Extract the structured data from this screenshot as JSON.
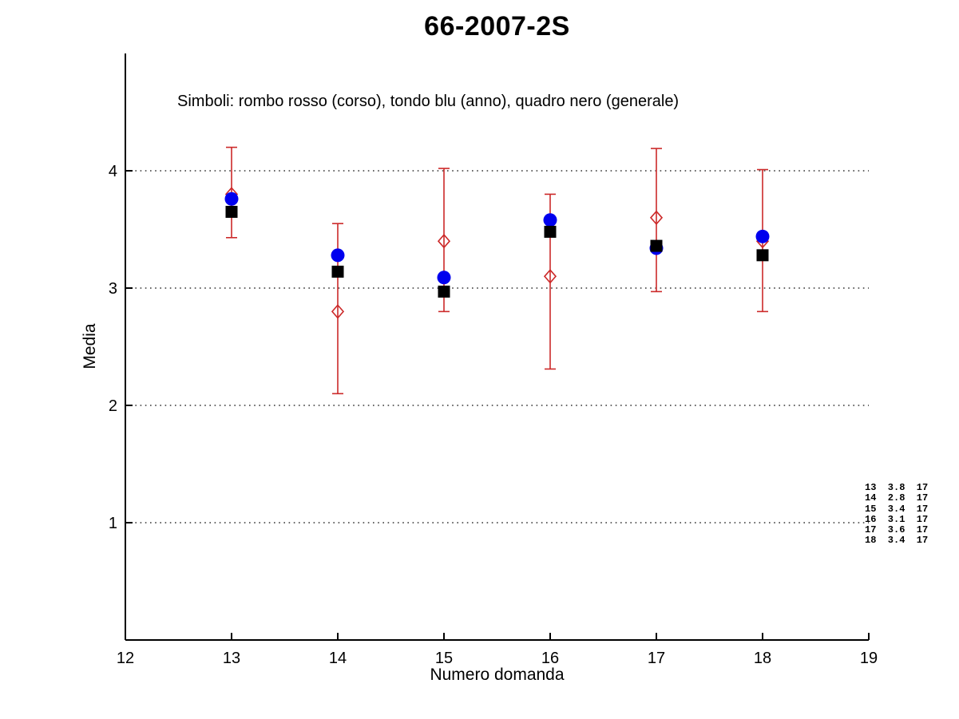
{
  "title": "66-2007-2S",
  "subtitle": "Simboli: rombo rosso (corso), tondo blu (anno), quadro nero (generale)",
  "colors": {
    "corso_red": "#cc2929",
    "anno_blue": "#0000ee",
    "generale_black": "#000000",
    "axis": "#000000",
    "grid": "#333333",
    "background": "#ffffff"
  },
  "chart_data": {
    "type": "scatter",
    "title": "66-2007-2S",
    "xlabel": "Numero domanda",
    "ylabel": "Media",
    "xlim": [
      12,
      19
    ],
    "ylim": [
      0,
      5
    ],
    "xticks": [
      12,
      13,
      14,
      15,
      16,
      17,
      18,
      19
    ],
    "yticks": [
      1,
      2,
      3,
      4
    ],
    "grid": "horizontal dotted lines at yticks",
    "legend_position": "text line inside plot, top-left",
    "x": [
      13,
      14,
      15,
      16,
      17,
      18
    ],
    "series": [
      {
        "name": "corso (rombo rosso)",
        "marker": "open-diamond",
        "color": "#cc2929",
        "values": [
          3.8,
          2.8,
          3.4,
          3.1,
          3.6,
          3.4
        ],
        "error_low": [
          3.43,
          2.1,
          2.8,
          2.31,
          2.97,
          2.8
        ],
        "error_high": [
          4.2,
          3.55,
          4.02,
          3.8,
          4.19,
          4.01
        ]
      },
      {
        "name": "anno (tondo blu)",
        "marker": "filled-circle",
        "color": "#0000ee",
        "values": [
          3.76,
          3.28,
          3.09,
          3.58,
          3.34,
          3.44
        ]
      },
      {
        "name": "generale (quadro nero)",
        "marker": "filled-square",
        "color": "#000000",
        "values": [
          3.65,
          3.14,
          2.97,
          3.48,
          3.36,
          3.28
        ]
      }
    ],
    "annotation_lines": [
      "13  3.8  17",
      "14  2.8  17",
      "15  3.4  17",
      "16  3.1  17",
      "17  3.6  17",
      "18  3.4  17"
    ]
  }
}
